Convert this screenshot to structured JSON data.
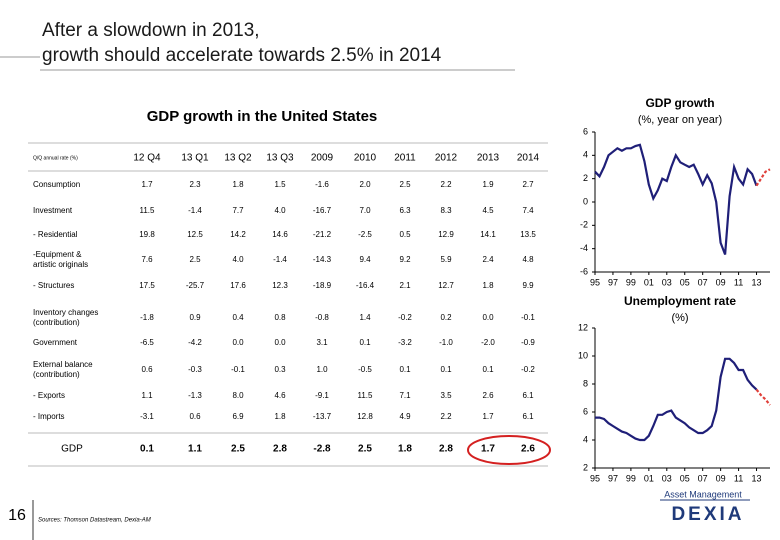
{
  "header": {
    "title": [
      "After a slowdown in 2013,",
      "growth should accelerate towards 2.5% in 2014"
    ]
  },
  "table": {
    "title": "GDP growth in the United States",
    "header_label": "Q/Q annual rate (%)",
    "columns": [
      "12 Q4",
      "13 Q1",
      "13 Q2",
      "13 Q3",
      "2009",
      "2010",
      "2011",
      "2012",
      "2013",
      "2014"
    ],
    "rows": [
      {
        "label": [
          "Consumption"
        ],
        "values": [
          "1.7",
          "2.3",
          "1.8",
          "1.5",
          "-1.6",
          "2.0",
          "2.5",
          "2.2",
          "1.9",
          "2.7"
        ]
      },
      {
        "label": [
          "Investment"
        ],
        "values": [
          "11.5",
          "-1.4",
          "7.7",
          "4.0",
          "-16.7",
          "7.0",
          "6.3",
          "8.3",
          "4.5",
          "7.4"
        ]
      },
      {
        "label": [
          "- Residential"
        ],
        "values": [
          "19.8",
          "12.5",
          "14.2",
          "14.6",
          "-21.2",
          "-2.5",
          "0.5",
          "12.9",
          "14.1",
          "13.5"
        ]
      },
      {
        "label": [
          "-Equipment &",
          "artistic originals"
        ],
        "values": [
          "7.6",
          "2.5",
          "4.0",
          "-1.4",
          "-14.3",
          "9.4",
          "9.2",
          "5.9",
          "2.4",
          "4.8"
        ]
      },
      {
        "label": [
          "- Structures"
        ],
        "values": [
          "17.5",
          "-25.7",
          "17.6",
          "12.3",
          "-18.9",
          "-16.4",
          "2.1",
          "12.7",
          "1.8",
          "9.9"
        ]
      },
      {
        "label": [
          "Inventory changes",
          "(contribution)"
        ],
        "values": [
          "-1.8",
          "0.9",
          "0.4",
          "0.8",
          "-0.8",
          "1.4",
          "-0.2",
          "0.2",
          "0.0",
          "-0.1"
        ]
      },
      {
        "label": [
          "Government"
        ],
        "values": [
          "-6.5",
          "-4.2",
          "0.0",
          "0.0",
          "3.1",
          "0.1",
          "-3.2",
          "-1.0",
          "-2.0",
          "-0.9"
        ]
      },
      {
        "label": [
          "External balance",
          "(contribution)"
        ],
        "values": [
          "0.6",
          "-0.3",
          "-0.1",
          "0.3",
          "1.0",
          "-0.5",
          "0.1",
          "0.1",
          "0.1",
          "-0.2"
        ]
      },
      {
        "label": [
          "- Exports"
        ],
        "values": [
          "1.1",
          "-1.3",
          "8.0",
          "4.6",
          "-9.1",
          "11.5",
          "7.1",
          "3.5",
          "2.6",
          "6.1"
        ]
      },
      {
        "label": [
          "- Imports"
        ],
        "values": [
          "-3.1",
          "0.6",
          "6.9",
          "1.8",
          "-13.7",
          "12.8",
          "4.9",
          "2.2",
          "1.7",
          "6.1"
        ]
      },
      {
        "label": [
          "GDP"
        ],
        "values": [
          "0.1",
          "1.1",
          "2.5",
          "2.8",
          "-2.8",
          "2.5",
          "1.8",
          "2.8",
          "1.7",
          "2.6"
        ]
      }
    ]
  },
  "chart_data": [
    {
      "type": "line",
      "title": "GDP growth",
      "subtitle": "(%, year on year)",
      "x": [
        1995,
        1995.5,
        1996,
        1996.5,
        1997,
        1997.5,
        1998,
        1998.5,
        1999,
        1999.5,
        2000,
        2000.5,
        2001,
        2001.5,
        2002,
        2002.5,
        2003,
        2003.5,
        2004,
        2004.5,
        2005,
        2005.5,
        2006,
        2006.5,
        2007,
        2007.5,
        2008,
        2008.5,
        2009,
        2009.5,
        2010,
        2010.5,
        2011,
        2011.5,
        2012,
        2012.5,
        2013,
        2013.5,
        2014,
        2014.5
      ],
      "series": [
        {
          "color": "#1f1f78",
          "style": "solid",
          "values": [
            2.6,
            2.2,
            3.0,
            4.0,
            4.3,
            4.6,
            4.4,
            4.6,
            4.6,
            4.8,
            4.9,
            3.5,
            1.5,
            0.3,
            1.0,
            2.0,
            1.8,
            3.0,
            4.0,
            3.4,
            3.2,
            3.0,
            3.2,
            2.4,
            1.5,
            2.3,
            1.6,
            0.0,
            -3.5,
            -4.5,
            0.5,
            3.0,
            2.0,
            1.5,
            2.8,
            2.4,
            1.4,
            null,
            null,
            null
          ]
        },
        {
          "color": "#e0403a",
          "style": "dashed",
          "values": [
            null,
            null,
            null,
            null,
            null,
            null,
            null,
            null,
            null,
            null,
            null,
            null,
            null,
            null,
            null,
            null,
            null,
            null,
            null,
            null,
            null,
            null,
            null,
            null,
            null,
            null,
            null,
            null,
            null,
            null,
            null,
            null,
            null,
            null,
            null,
            null,
            1.4,
            2.0,
            2.6,
            2.8
          ]
        }
      ],
      "xlim": [
        1995,
        2014.5
      ],
      "xticks": [
        {
          "value": 1995,
          "label": "95"
        },
        {
          "value": 1997,
          "label": "97"
        },
        {
          "value": 1999,
          "label": "99"
        },
        {
          "value": 2001,
          "label": "01"
        },
        {
          "value": 2003,
          "label": "03"
        },
        {
          "value": 2005,
          "label": "05"
        },
        {
          "value": 2007,
          "label": "07"
        },
        {
          "value": 2009,
          "label": "09"
        },
        {
          "value": 2011,
          "label": "11"
        },
        {
          "value": 2013,
          "label": "13"
        }
      ],
      "ylim": [
        -6,
        6
      ],
      "yticks": [
        -6,
        -4,
        -2,
        0,
        2,
        4,
        6
      ]
    },
    {
      "type": "line",
      "title": "Unemployment rate",
      "subtitle": "(%)",
      "x": [
        1995,
        1995.5,
        1996,
        1996.5,
        1997,
        1997.5,
        1998,
        1998.5,
        1999,
        1999.5,
        2000,
        2000.5,
        2001,
        2001.5,
        2002,
        2002.5,
        2003,
        2003.5,
        2004,
        2004.5,
        2005,
        2005.5,
        2006,
        2006.5,
        2007,
        2007.5,
        2008,
        2008.5,
        2009,
        2009.5,
        2010,
        2010.5,
        2011,
        2011.5,
        2012,
        2012.5,
        2013,
        2013.5,
        2014,
        2014.5
      ],
      "series": [
        {
          "color": "#1f1f78",
          "style": "solid",
          "values": [
            5.6,
            5.6,
            5.5,
            5.2,
            5.0,
            4.8,
            4.6,
            4.5,
            4.3,
            4.1,
            4.0,
            4.0,
            4.3,
            5.0,
            5.8,
            5.8,
            6.0,
            6.1,
            5.6,
            5.4,
            5.2,
            4.9,
            4.7,
            4.5,
            4.5,
            4.7,
            5.0,
            6.1,
            8.5,
            9.8,
            9.8,
            9.5,
            9.0,
            9.0,
            8.3,
            7.9,
            7.6,
            null,
            null,
            null
          ]
        },
        {
          "color": "#e0403a",
          "style": "dashed",
          "values": [
            null,
            null,
            null,
            null,
            null,
            null,
            null,
            null,
            null,
            null,
            null,
            null,
            null,
            null,
            null,
            null,
            null,
            null,
            null,
            null,
            null,
            null,
            null,
            null,
            null,
            null,
            null,
            null,
            null,
            null,
            null,
            null,
            null,
            null,
            null,
            null,
            7.6,
            7.2,
            6.9,
            6.5
          ]
        }
      ],
      "xlim": [
        1995,
        2014.5
      ],
      "xticks": [
        {
          "value": 1995,
          "label": "95"
        },
        {
          "value": 1997,
          "label": "97"
        },
        {
          "value": 1999,
          "label": "99"
        },
        {
          "value": 2001,
          "label": "01"
        },
        {
          "value": 2003,
          "label": "03"
        },
        {
          "value": 2005,
          "label": "05"
        },
        {
          "value": 2007,
          "label": "07"
        },
        {
          "value": 2009,
          "label": "09"
        },
        {
          "value": 2011,
          "label": "11"
        },
        {
          "value": 2013,
          "label": "13"
        }
      ],
      "ylim": [
        2,
        12
      ],
      "yticks": [
        2,
        4,
        6,
        8,
        10,
        12
      ]
    }
  ],
  "footer": {
    "page": "16",
    "source": "Sources: Thomson Datastream, Dexia-AM",
    "logo_tagline": "Asset Management",
    "logo_name": "DEXIA"
  }
}
